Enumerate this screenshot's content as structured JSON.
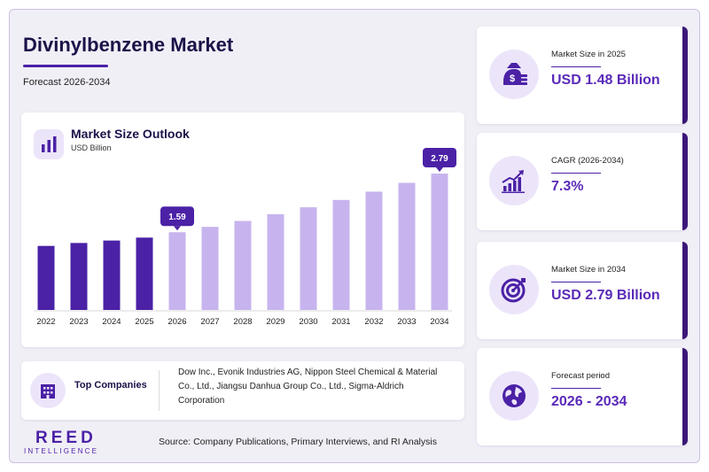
{
  "header": {
    "title": "Divinylbenzene Market",
    "subtitle": "Forecast 2026-2034"
  },
  "chart_data": {
    "type": "bar",
    "title": "Market Size Outlook",
    "ylabel": "USD Billion",
    "categories": [
      "2022",
      "2023",
      "2024",
      "2025",
      "2026",
      "2027",
      "2028",
      "2029",
      "2030",
      "2031",
      "2032",
      "2033",
      "2034"
    ],
    "values": [
      1.31,
      1.37,
      1.42,
      1.48,
      1.59,
      1.7,
      1.82,
      1.96,
      2.1,
      2.25,
      2.42,
      2.6,
      2.79
    ],
    "labeled_values": [
      {
        "year": "2026",
        "label": "1.59"
      },
      {
        "year": "2034",
        "label": "2.79"
      }
    ],
    "ylim": [
      0,
      2.79
    ],
    "historic_color": "#4b21a6",
    "forecast_color": "#c7b4ee",
    "label_color": "#4b21a6"
  },
  "companies": {
    "label": "Top Companies",
    "text": "Dow Inc., Evonik Industries AG, Nippon Steel Chemical & Material Co., Ltd., Jiangsu Danhua Group Co., Ltd., Sigma-Aldrich Corporation"
  },
  "kpis": [
    {
      "label": "Market Size in 2025",
      "value": "USD 1.48 Billion",
      "icon": "money-bag-icon"
    },
    {
      "label": "CAGR (2026-2034)",
      "value": "7.3%",
      "icon": "growth-chart-icon"
    },
    {
      "label": "Market Size in 2034",
      "value": "USD 2.79 Billion",
      "icon": "target-icon"
    },
    {
      "label": "Forecast period",
      "value": "2026 - 2034",
      "icon": "globe-icon"
    }
  ],
  "footer": {
    "logo_main": "REED",
    "logo_sub": "INTELLIGENCE",
    "source": "Source: Company Publications, Primary Interviews, and RI Analysis"
  },
  "colors": {
    "accent": "#4b21a6",
    "accent_light": "#ece5fa",
    "kpi_value": "#5a2ab8",
    "title": "#1a1248"
  }
}
